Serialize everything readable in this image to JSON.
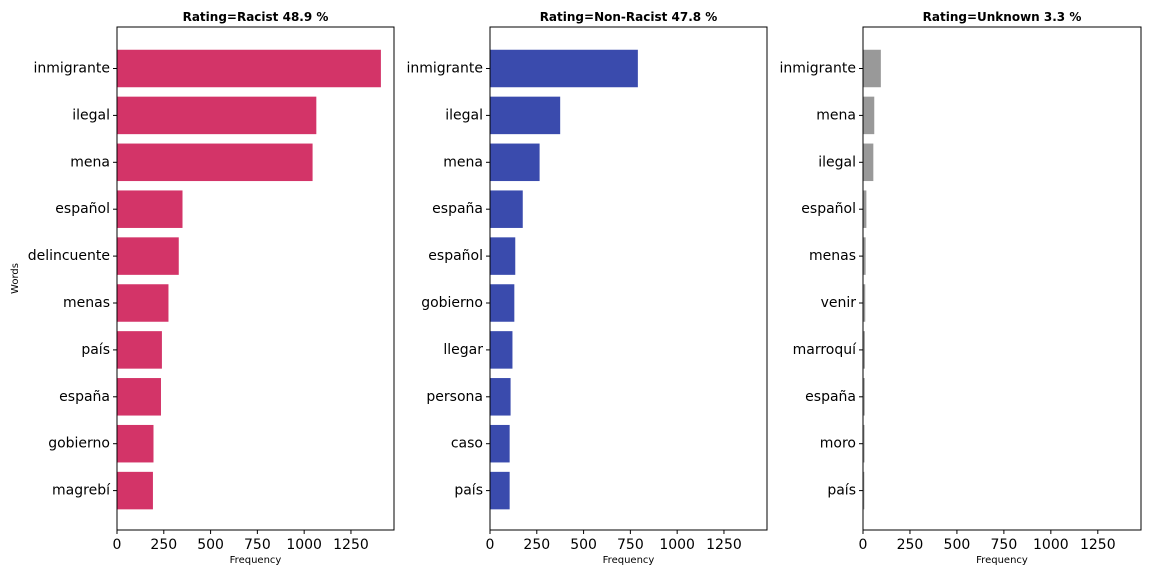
{
  "chart_data": [
    {
      "type": "bar",
      "orientation": "horizontal",
      "title": "Rating=Racist 48.9 %",
      "xlabel": "Frequency",
      "ylabel": "Words",
      "color": "#d33468",
      "xlim": [
        0,
        1480
      ],
      "xticks": [
        0,
        250,
        500,
        750,
        1000,
        1250
      ],
      "categories": [
        "inmigrante",
        "ilegal",
        "mena",
        "español",
        "delincuente",
        "menas",
        "país",
        "españa",
        "gobierno",
        "magrebí"
      ],
      "values": [
        1410,
        1065,
        1045,
        350,
        330,
        275,
        240,
        235,
        195,
        192
      ]
    },
    {
      "type": "bar",
      "orientation": "horizontal",
      "title": "Rating=Non-Racist 47.8 %",
      "xlabel": "Frequency",
      "ylabel": "",
      "color": "#3a4bad",
      "xlim": [
        0,
        1480
      ],
      "xticks": [
        0,
        250,
        500,
        750,
        1000,
        1250
      ],
      "categories": [
        "inmigrante",
        "ilegal",
        "mena",
        "españa",
        "español",
        "gobierno",
        "llegar",
        "persona",
        "caso",
        "país"
      ],
      "values": [
        790,
        375,
        265,
        175,
        135,
        130,
        120,
        110,
        105,
        105
      ]
    },
    {
      "type": "bar",
      "orientation": "horizontal",
      "title": "Rating=Unknown 3.3 %",
      "xlabel": "Frequency",
      "ylabel": "",
      "color": "#999999",
      "xlim": [
        0,
        1480
      ],
      "xticks": [
        0,
        250,
        500,
        750,
        1000,
        1250
      ],
      "categories": [
        "inmigrante",
        "mena",
        "ilegal",
        "español",
        "menas",
        "venir",
        "marroquí",
        "españa",
        "moro",
        "país"
      ],
      "values": [
        95,
        60,
        55,
        18,
        14,
        12,
        10,
        9,
        8,
        7
      ]
    }
  ]
}
